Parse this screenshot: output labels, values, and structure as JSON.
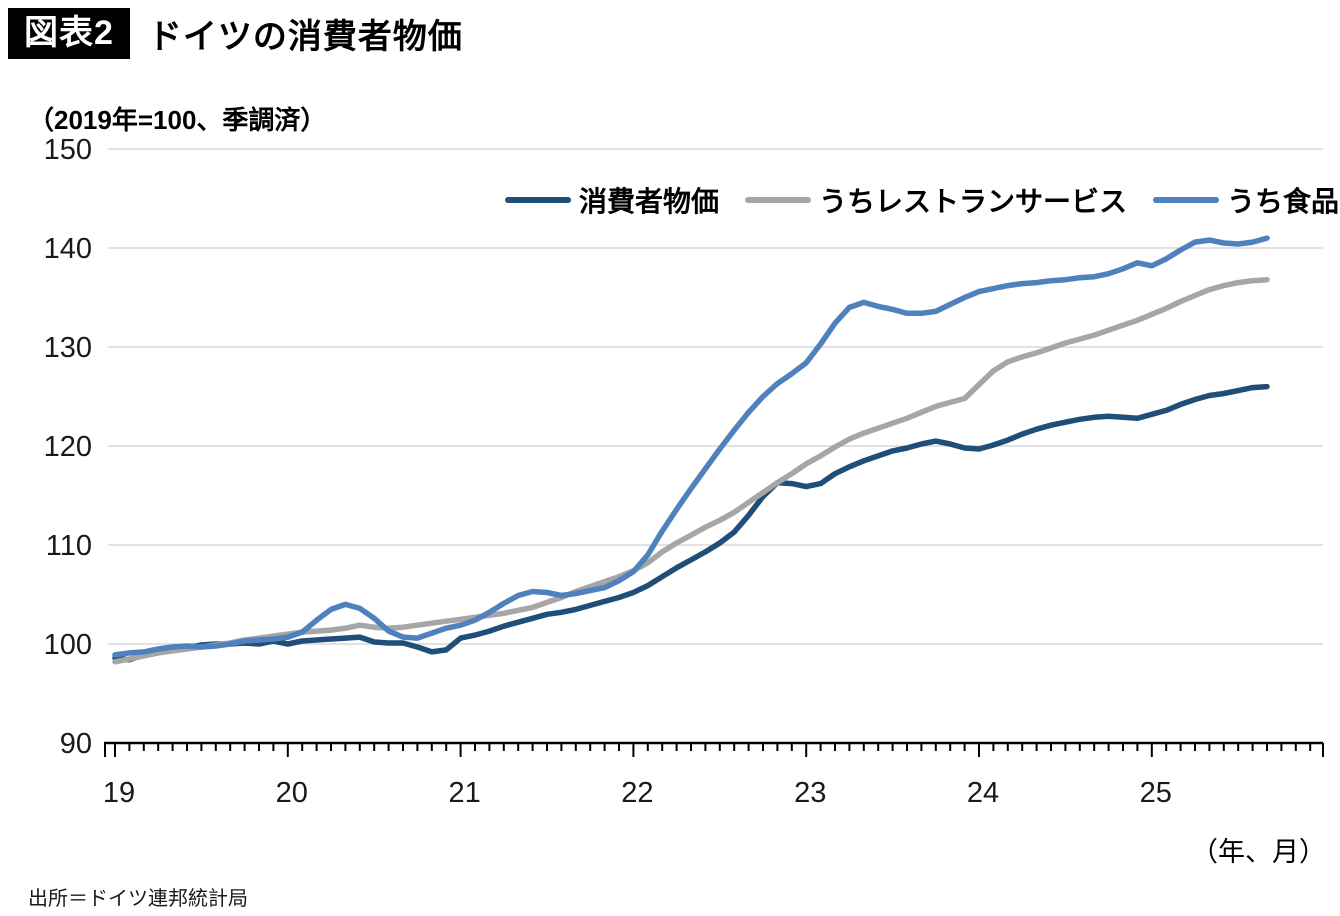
{
  "header": {
    "badge": "図表2",
    "title": "ドイツの消費者物価"
  },
  "source": "出所＝ドイツ連邦統計局",
  "chart_data": {
    "type": "line",
    "subtitle_unit": "（2019年=100、季調済）",
    "x_axis_unit": "（年、月）",
    "start_month": "2019-01",
    "frequency": "monthly",
    "grid": "horizontal",
    "legend_position": "top-right",
    "ylim": [
      90,
      150
    ],
    "y_ticks": [
      90,
      100,
      110,
      120,
      130,
      140,
      150
    ],
    "x_tick_labels": [
      "19",
      "20",
      "21",
      "22",
      "23",
      "24",
      "25"
    ],
    "series": [
      {
        "name": "消費者物価",
        "color": "#1F4E79",
        "values": [
          98.6,
          98.4,
          98.9,
          99.3,
          99.5,
          99.6,
          99.9,
          100.0,
          100.0,
          100.1,
          100.0,
          100.3,
          100.0,
          100.3,
          100.4,
          100.5,
          100.6,
          100.7,
          100.2,
          100.1,
          100.1,
          99.7,
          99.2,
          99.4,
          100.6,
          100.9,
          101.3,
          101.8,
          102.2,
          102.6,
          103.0,
          103.2,
          103.5,
          103.9,
          104.3,
          104.7,
          105.2,
          105.9,
          106.8,
          107.7,
          108.5,
          109.3,
          110.2,
          111.3,
          113.0,
          114.9,
          116.3,
          116.2,
          115.9,
          116.2,
          117.2,
          117.9,
          118.5,
          119.0,
          119.5,
          119.8,
          120.2,
          120.5,
          120.2,
          119.8,
          119.7,
          120.1,
          120.6,
          121.2,
          121.7,
          122.1,
          122.4,
          122.7,
          122.9,
          123.0,
          122.9,
          122.8,
          123.2,
          123.6,
          124.2,
          124.7,
          125.1,
          125.3,
          125.6,
          125.9,
          126.0
        ]
      },
      {
        "name": "うちレストランサービス",
        "color": "#A6A6A6",
        "values": [
          98.2,
          98.5,
          98.8,
          99.1,
          99.3,
          99.5,
          99.7,
          99.9,
          100.1,
          100.4,
          100.6,
          100.8,
          101.0,
          101.2,
          101.3,
          101.4,
          101.6,
          101.9,
          101.7,
          101.6,
          101.7,
          101.9,
          102.1,
          102.3,
          102.5,
          102.7,
          102.9,
          103.1,
          103.4,
          103.7,
          104.2,
          104.7,
          105.3,
          105.8,
          106.3,
          106.8,
          107.4,
          108.2,
          109.3,
          110.2,
          111.0,
          111.8,
          112.5,
          113.3,
          114.3,
          115.3,
          116.3,
          117.2,
          118.2,
          119.0,
          119.9,
          120.7,
          121.3,
          121.8,
          122.3,
          122.8,
          123.4,
          124.0,
          124.4,
          124.8,
          126.2,
          127.6,
          128.5,
          129.0,
          129.4,
          129.9,
          130.4,
          130.8,
          131.2,
          131.7,
          132.2,
          132.7,
          133.3,
          133.9,
          134.6,
          135.2,
          135.8,
          136.2,
          136.5,
          136.7,
          136.8
        ]
      },
      {
        "name": "うち食品",
        "color": "#4E81BD",
        "values": [
          98.9,
          99.1,
          99.2,
          99.5,
          99.7,
          99.8,
          99.7,
          99.8,
          100.0,
          100.3,
          100.4,
          100.5,
          100.7,
          101.2,
          102.4,
          103.5,
          104.0,
          103.6,
          102.6,
          101.3,
          100.7,
          100.6,
          101.1,
          101.6,
          101.9,
          102.4,
          103.2,
          104.1,
          104.9,
          105.3,
          105.2,
          104.9,
          105.1,
          105.4,
          105.7,
          106.4,
          107.3,
          109.0,
          111.4,
          113.6,
          115.7,
          117.7,
          119.7,
          121.6,
          123.4,
          125.0,
          126.3,
          127.3,
          128.4,
          130.3,
          132.4,
          134.0,
          134.5,
          134.1,
          133.8,
          133.4,
          133.4,
          133.6,
          134.3,
          135.0,
          135.6,
          135.9,
          136.2,
          136.4,
          136.5,
          136.7,
          136.8,
          137.0,
          137.1,
          137.4,
          137.9,
          138.5,
          138.2,
          138.9,
          139.8,
          140.6,
          140.8,
          140.5,
          140.4,
          140.6,
          141.0
        ]
      }
    ]
  }
}
